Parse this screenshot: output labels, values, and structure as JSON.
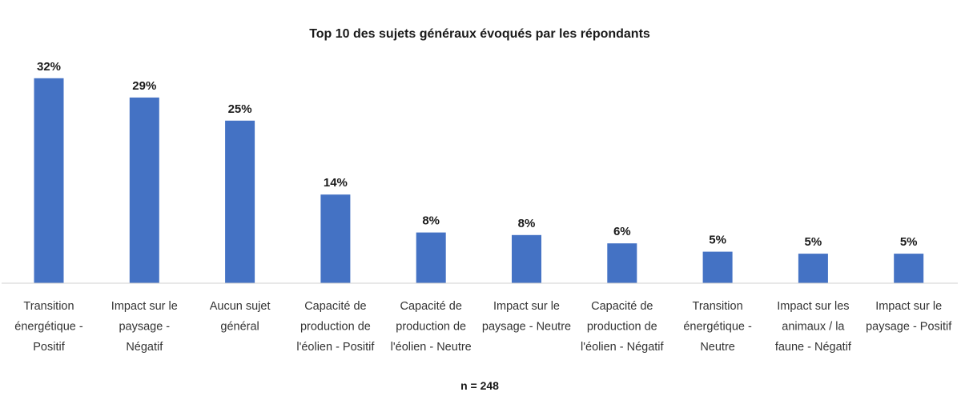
{
  "chart_data": {
    "type": "bar",
    "title": "Top 10 des sujets généraux évoqués par les répondants",
    "categories": [
      [
        "Transition",
        "énergétique -",
        "Positif"
      ],
      [
        "Impact sur le",
        "paysage -",
        "Négatif"
      ],
      [
        "Aucun sujet",
        "général"
      ],
      [
        "Capacité de",
        "production de",
        "l'éolien - Positif"
      ],
      [
        "Capacité de",
        "production de",
        "l'éolien - Neutre"
      ],
      [
        "Impact sur le",
        "paysage - Neutre"
      ],
      [
        "Capacité de",
        "production de",
        "l'éolien - Négatif"
      ],
      [
        "Transition",
        "énergétique -",
        "Neutre"
      ],
      [
        "Impact sur les",
        "animaux / la",
        "faune - Négatif"
      ],
      [
        "Impact sur le",
        "paysage - Positif"
      ]
    ],
    "values": [
      32,
      29,
      25,
      14,
      8,
      8,
      6,
      5,
      5,
      5
    ],
    "heights": [
      31.9,
      28.9,
      25.3,
      13.8,
      7.9,
      7.5,
      6.2,
      4.9,
      4.6,
      4.6
    ],
    "labels": [
      "32%",
      "29%",
      "25%",
      "14%",
      "8%",
      "8%",
      "6%",
      "5%",
      "5%",
      "5%"
    ],
    "unit": "%",
    "ylim": [
      0,
      32
    ],
    "grid": false,
    "legend": "none",
    "bar_color": "#4472C4",
    "axis_color": "#d0d0d0",
    "footnote": "n = 248"
  }
}
